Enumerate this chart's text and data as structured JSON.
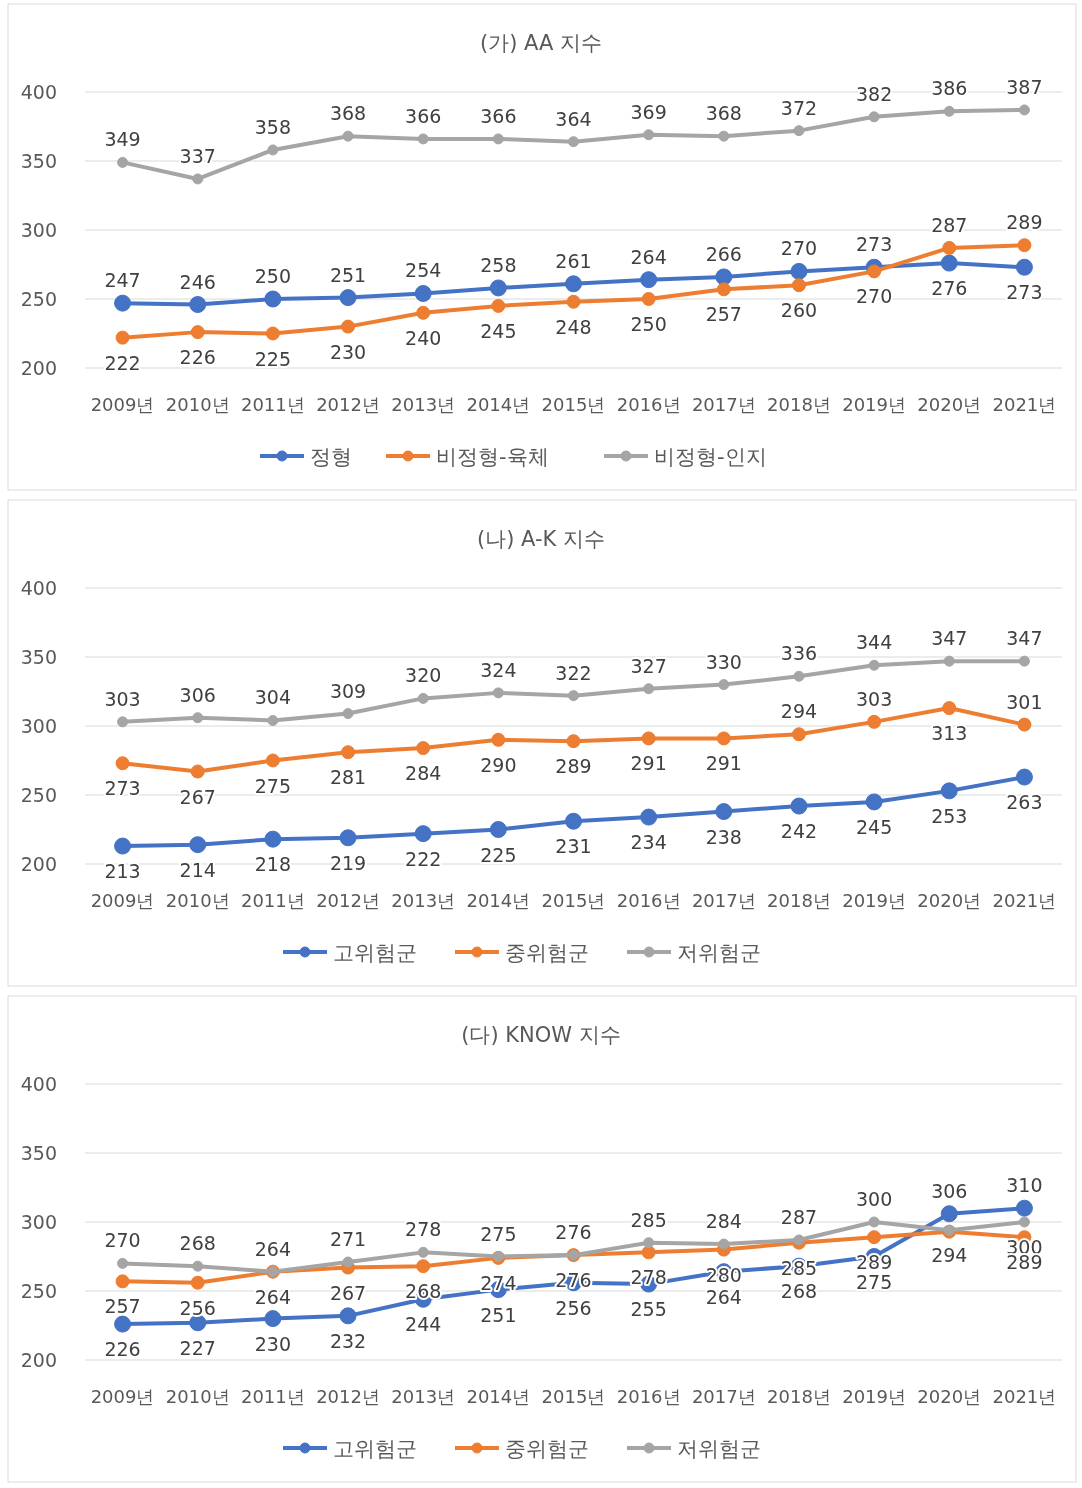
{
  "chart_data": [
    {
      "type": "line",
      "title": "(가) AA 지수",
      "categories": [
        "2009년",
        "2010년",
        "2011년",
        "2012년",
        "2013년",
        "2014년",
        "2015년",
        "2016년",
        "2017년",
        "2018년",
        "2019년",
        "2020년",
        "2021년"
      ],
      "ylim": [
        200,
        400
      ],
      "yticks": [
        200,
        250,
        300,
        350,
        400
      ],
      "grid": "y",
      "legend": "bottom",
      "marker": "circle",
      "data_labels": true,
      "series": [
        {
          "name": "정형",
          "color": "#4472c4",
          "values": [
            247,
            246,
            250,
            251,
            254,
            258,
            261,
            264,
            266,
            270,
            273,
            276,
            273
          ]
        },
        {
          "name": "비정형-육체",
          "color": "#ed7d31",
          "values": [
            222,
            226,
            225,
            230,
            240,
            245,
            248,
            250,
            257,
            260,
            270,
            287,
            289
          ]
        },
        {
          "name": "비정형-인지",
          "color": "#a5a5a5",
          "values": [
            349,
            337,
            358,
            368,
            366,
            366,
            364,
            369,
            368,
            372,
            382,
            386,
            387
          ]
        }
      ]
    },
    {
      "type": "line",
      "title": "(나) A-K 지수",
      "categories": [
        "2009년",
        "2010년",
        "2011년",
        "2012년",
        "2013년",
        "2014년",
        "2015년",
        "2016년",
        "2017년",
        "2018년",
        "2019년",
        "2020년",
        "2021년"
      ],
      "ylim": [
        200,
        400
      ],
      "yticks": [
        200,
        250,
        300,
        350,
        400
      ],
      "grid": "y",
      "legend": "bottom",
      "marker": "circle",
      "data_labels": true,
      "series": [
        {
          "name": "고위험군",
          "color": "#4472c4",
          "values": [
            213,
            214,
            218,
            219,
            222,
            225,
            231,
            234,
            238,
            242,
            245,
            253,
            263
          ]
        },
        {
          "name": "중위험군",
          "color": "#ed7d31",
          "values": [
            273,
            267,
            275,
            281,
            284,
            290,
            289,
            291,
            291,
            294,
            303,
            313,
            301
          ]
        },
        {
          "name": "저위험군",
          "color": "#a5a5a5",
          "values": [
            303,
            306,
            304,
            309,
            320,
            324,
            322,
            327,
            330,
            336,
            344,
            347,
            347
          ]
        }
      ]
    },
    {
      "type": "line",
      "title": "(다) KNOW 지수",
      "categories": [
        "2009년",
        "2010년",
        "2011년",
        "2012년",
        "2013년",
        "2014년",
        "2015년",
        "2016년",
        "2017년",
        "2018년",
        "2019년",
        "2020년",
        "2021년"
      ],
      "ylim": [
        200,
        400
      ],
      "yticks": [
        200,
        250,
        300,
        350,
        400
      ],
      "grid": "y",
      "legend": "bottom",
      "marker": "circle",
      "data_labels": true,
      "series": [
        {
          "name": "고위험군",
          "color": "#4472c4",
          "values": [
            226,
            227,
            230,
            232,
            244,
            251,
            256,
            255,
            264,
            268,
            275,
            306,
            310
          ]
        },
        {
          "name": "중위험군",
          "color": "#ed7d31",
          "values": [
            257,
            256,
            264,
            267,
            268,
            274,
            276,
            278,
            280,
            285,
            289,
            293,
            289
          ],
          "value_labels": [
            "257",
            "256",
            "264",
            "267",
            "268",
            "274",
            "276",
            "278",
            "280",
            "285",
            "289",
            null,
            "289"
          ]
        },
        {
          "name": "저위험군",
          "color": "#a5a5a5",
          "values": [
            270,
            268,
            264,
            271,
            278,
            275,
            276,
            285,
            284,
            287,
            300,
            294,
            300
          ]
        }
      ]
    }
  ]
}
